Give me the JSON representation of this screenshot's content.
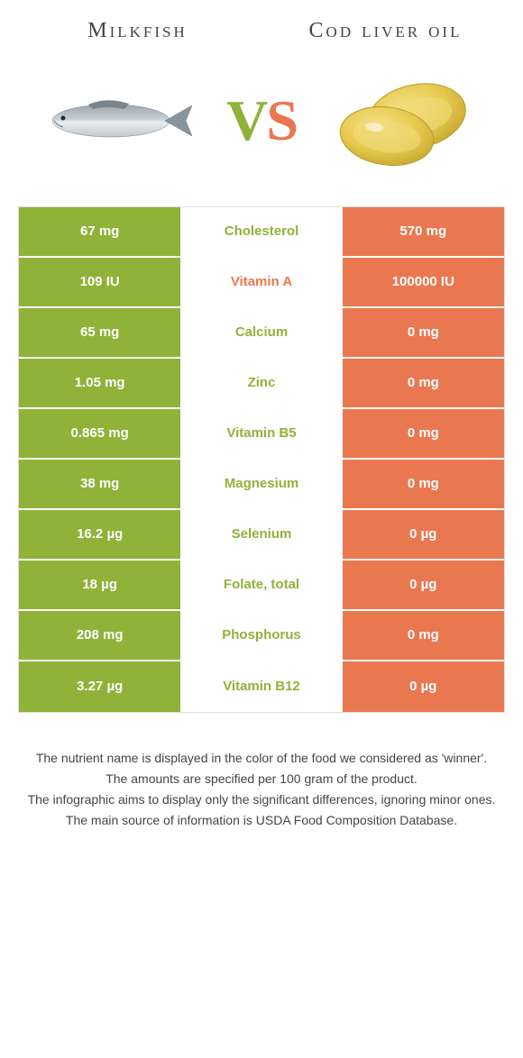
{
  "header": {
    "left": "Milkfish",
    "right": "Cod liver oil"
  },
  "vs": {
    "v": "V",
    "s": "S"
  },
  "colors": {
    "green": "#8fb239",
    "orange": "#e97850",
    "mid_bg": "#ffffff"
  },
  "rows": [
    {
      "left": "67 mg",
      "mid": "Cholesterol",
      "right": "570 mg",
      "winner": "green"
    },
    {
      "left": "109 IU",
      "mid": "Vitamin A",
      "right": "100000 IU",
      "winner": "orange"
    },
    {
      "left": "65 mg",
      "mid": "Calcium",
      "right": "0 mg",
      "winner": "green"
    },
    {
      "left": "1.05 mg",
      "mid": "Zinc",
      "right": "0 mg",
      "winner": "green"
    },
    {
      "left": "0.865 mg",
      "mid": "Vitamin B5",
      "right": "0 mg",
      "winner": "green"
    },
    {
      "left": "38 mg",
      "mid": "Magnesium",
      "right": "0 mg",
      "winner": "green"
    },
    {
      "left": "16.2 µg",
      "mid": "Selenium",
      "right": "0 µg",
      "winner": "green"
    },
    {
      "left": "18 µg",
      "mid": "Folate, total",
      "right": "0 µg",
      "winner": "green"
    },
    {
      "left": "208 mg",
      "mid": "Phosphorus",
      "right": "0 mg",
      "winner": "green"
    },
    {
      "left": "3.27 µg",
      "mid": "Vitamin B12",
      "right": "0 µg",
      "winner": "green"
    }
  ],
  "footer": {
    "l1": "The nutrient name is displayed in the color of the food we considered as 'winner'.",
    "l2": "The amounts are specified per 100 gram of the product.",
    "l3": "The infographic aims to display only the significant differences, ignoring minor ones.",
    "l4": "The main source of information is USDA Food Composition Database."
  }
}
